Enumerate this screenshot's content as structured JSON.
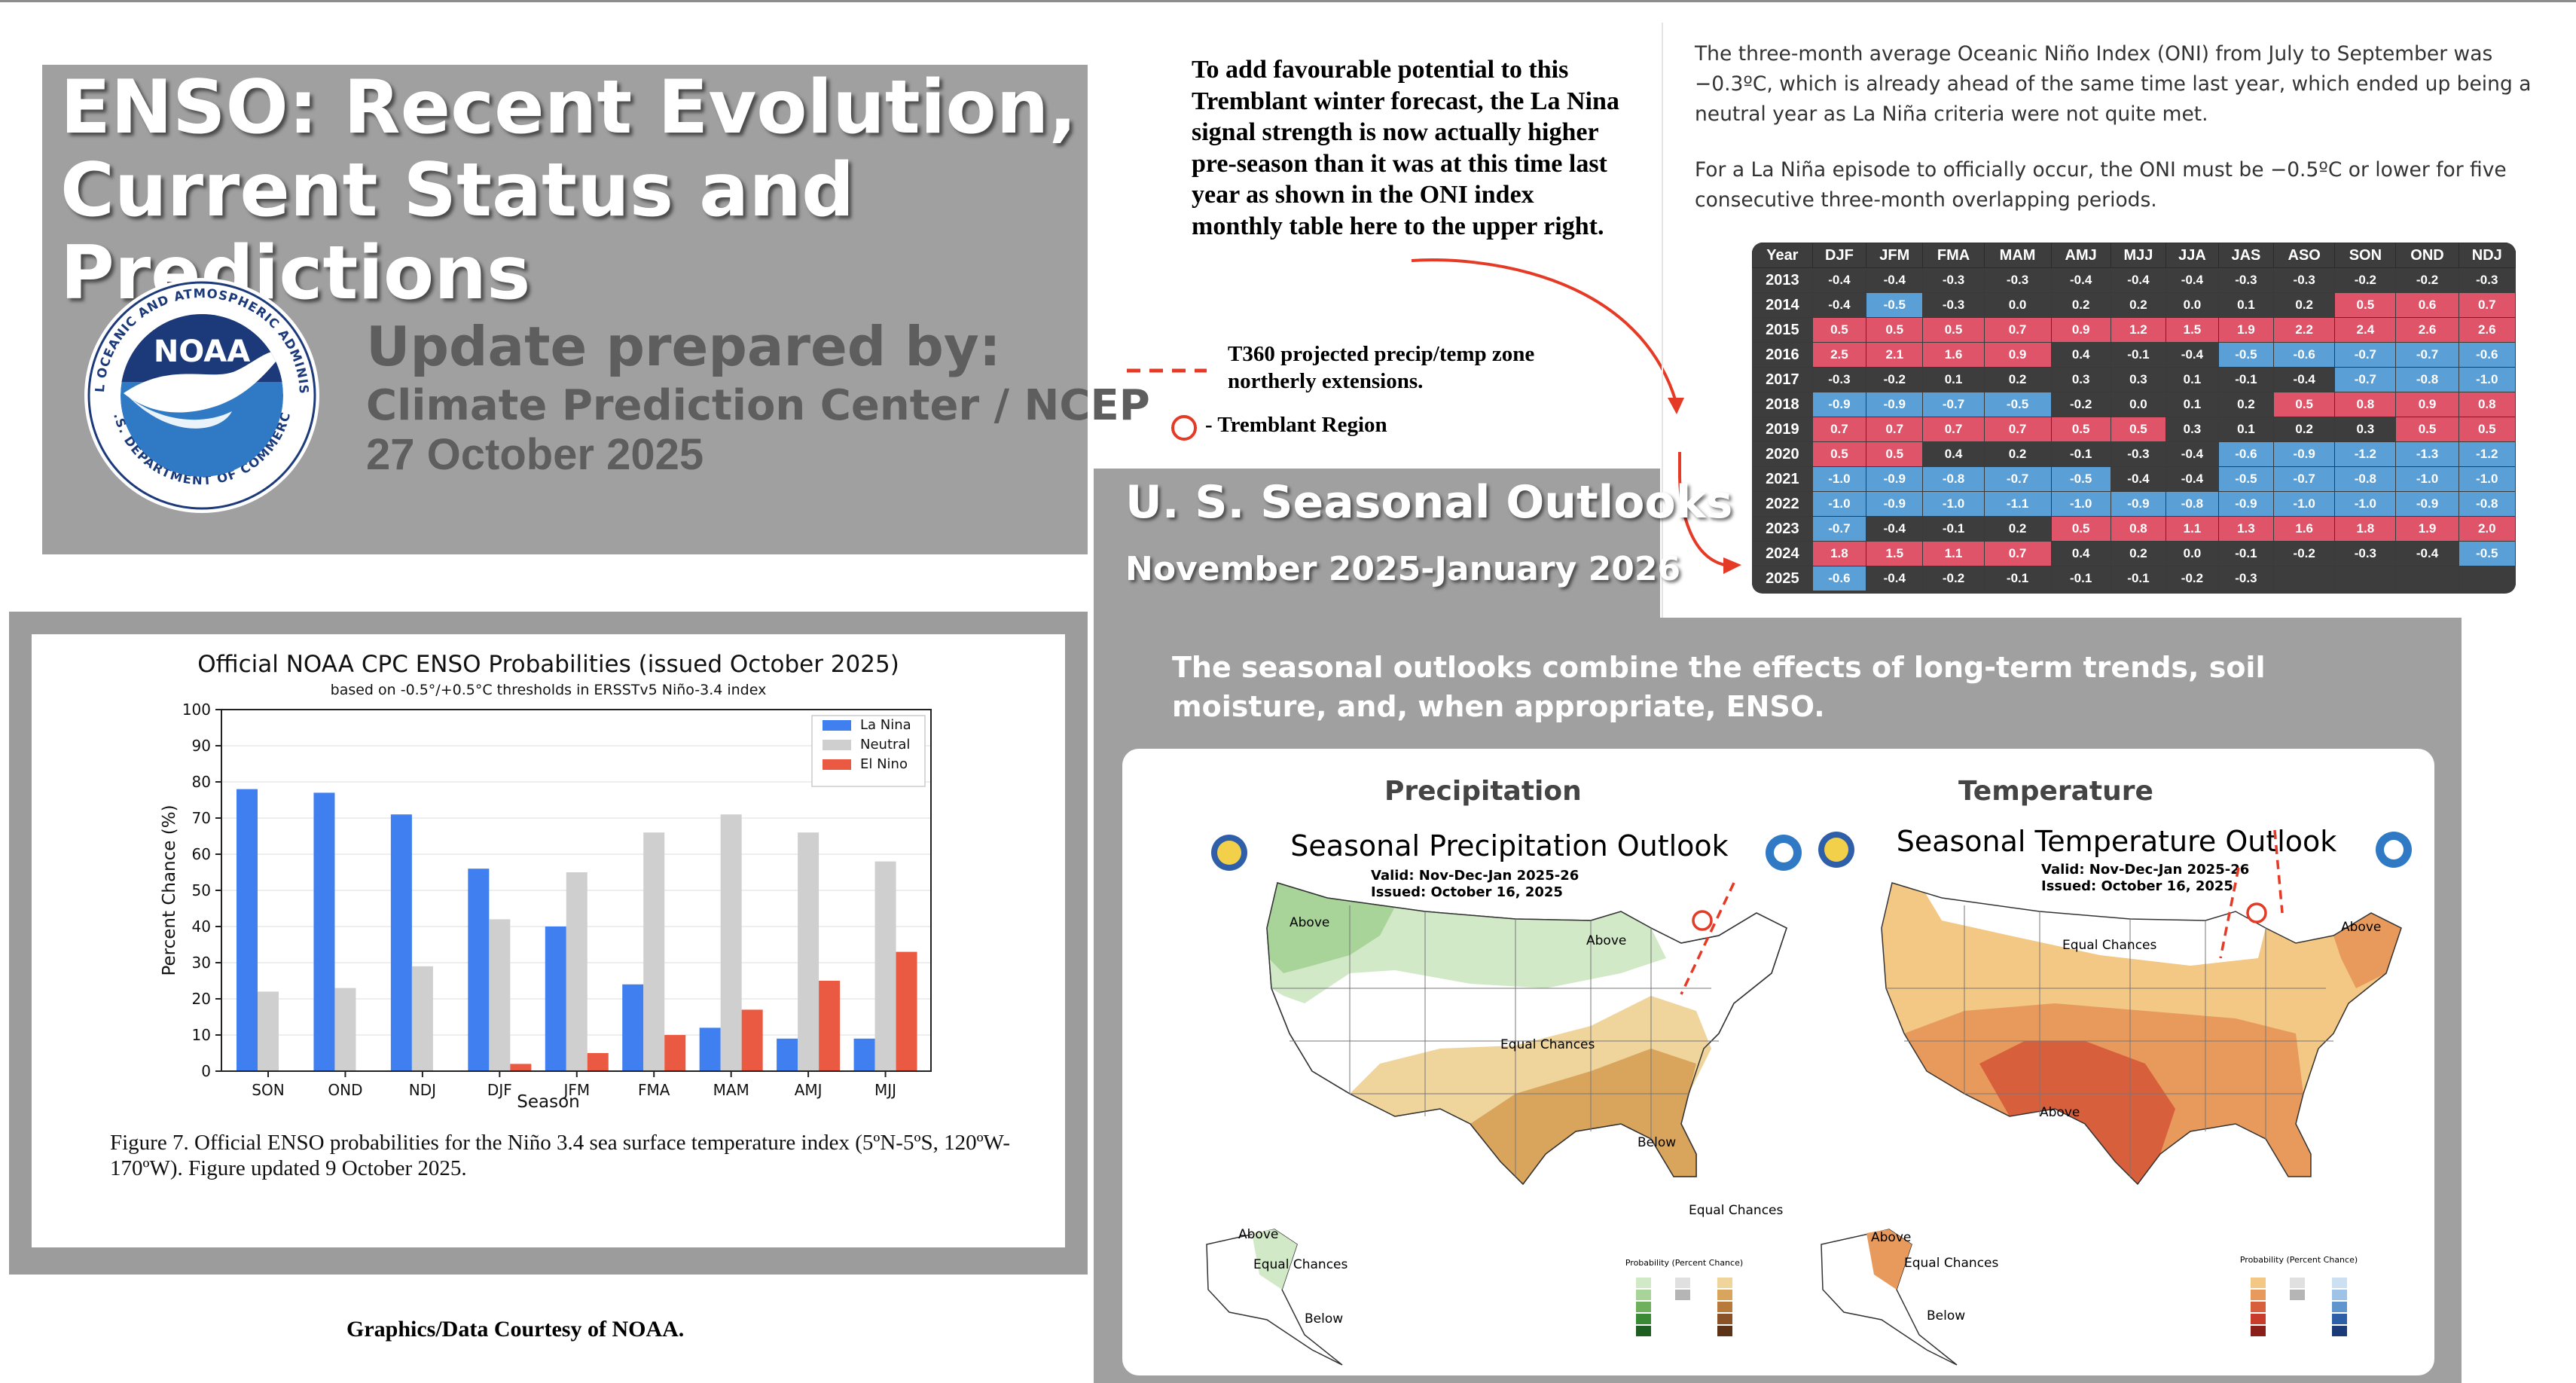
{
  "title": {
    "line1": "ENSO: Recent Evolution,",
    "line2": "Current Status and Predictions",
    "update_heading": "Update prepared by:",
    "update_org": "Climate Prediction Center / NCEP",
    "update_date": "27 October 2025",
    "logo": {
      "name": "noaa-logo",
      "center_text": "NOAA",
      "ring_text_top": "NATIONAL OCEANIC AND ATMOSPHERIC ADMINISTRATION",
      "ring_text_bottom": "U.S. DEPARTMENT OF COMMERCE",
      "colors": {
        "navy": "#1c3a7a",
        "blue": "#2f79c5",
        "white": "#ffffff"
      }
    }
  },
  "note": {
    "text": "To add favourable potential to this Tremblant winter forecast, the La Nina signal strength is now actually higher pre-season than it was at this time last year as shown in the ONI index monthly table here to the upper right.",
    "dashed_legend": "T360 projected precip/temp zone northerly extensions.",
    "circle_legend": "- Tremblant Region",
    "accent_color": "#e53a25"
  },
  "oni": {
    "paragraph1": "The three-month average Oceanic Niño Index (ONI) from July to September was −0.3ºC, which is already ahead of the same time last year, which ended up being a neutral year as La Niña criteria were not quite met.",
    "paragraph2": "For a La Niña episode to officially occur, the ONI must be −0.5ºC or lower for five consecutive three-month overlapping periods.",
    "colors": {
      "cold": "#5a9fd6",
      "warm": "#e0546a",
      "neutral": "#3d3d3d"
    },
    "headers": [
      "Year",
      "DJF",
      "JFM",
      "FMA",
      "MAM",
      "AMJ",
      "MJJ",
      "JJA",
      "JAS",
      "ASO",
      "SON",
      "OND",
      "NDJ"
    ],
    "rows": [
      {
        "year": "2013",
        "values": [
          "-0.4",
          "-0.4",
          "-0.3",
          "-0.3",
          "-0.4",
          "-0.4",
          "-0.4",
          "-0.3",
          "-0.3",
          "-0.2",
          "-0.2",
          "-0.3"
        ]
      },
      {
        "year": "2014",
        "values": [
          "-0.4",
          "-0.5",
          "-0.3",
          "0.0",
          "0.2",
          "0.2",
          "0.0",
          "0.1",
          "0.2",
          "0.5",
          "0.6",
          "0.7"
        ]
      },
      {
        "year": "2015",
        "values": [
          "0.5",
          "0.5",
          "0.5",
          "0.7",
          "0.9",
          "1.2",
          "1.5",
          "1.9",
          "2.2",
          "2.4",
          "2.6",
          "2.6"
        ]
      },
      {
        "year": "2016",
        "values": [
          "2.5",
          "2.1",
          "1.6",
          "0.9",
          "0.4",
          "-0.1",
          "-0.4",
          "-0.5",
          "-0.6",
          "-0.7",
          "-0.7",
          "-0.6"
        ]
      },
      {
        "year": "2017",
        "values": [
          "-0.3",
          "-0.2",
          "0.1",
          "0.2",
          "0.3",
          "0.3",
          "0.1",
          "-0.1",
          "-0.4",
          "-0.7",
          "-0.8",
          "-1.0"
        ]
      },
      {
        "year": "2018",
        "values": [
          "-0.9",
          "-0.9",
          "-0.7",
          "-0.5",
          "-0.2",
          "0.0",
          "0.1",
          "0.2",
          "0.5",
          "0.8",
          "0.9",
          "0.8"
        ]
      },
      {
        "year": "2019",
        "values": [
          "0.7",
          "0.7",
          "0.7",
          "0.7",
          "0.5",
          "0.5",
          "0.3",
          "0.1",
          "0.2",
          "0.3",
          "0.5",
          "0.5"
        ]
      },
      {
        "year": "2020",
        "values": [
          "0.5",
          "0.5",
          "0.4",
          "0.2",
          "-0.1",
          "-0.3",
          "-0.4",
          "-0.6",
          "-0.9",
          "-1.2",
          "-1.3",
          "-1.2"
        ]
      },
      {
        "year": "2021",
        "values": [
          "-1.0",
          "-0.9",
          "-0.8",
          "-0.7",
          "-0.5",
          "-0.4",
          "-0.4",
          "-0.5",
          "-0.7",
          "-0.8",
          "-1.0",
          "-1.0"
        ]
      },
      {
        "year": "2022",
        "values": [
          "-1.0",
          "-0.9",
          "-1.0",
          "-1.1",
          "-1.0",
          "-0.9",
          "-0.8",
          "-0.9",
          "-1.0",
          "-1.0",
          "-0.9",
          "-0.8"
        ]
      },
      {
        "year": "2023",
        "values": [
          "-0.7",
          "-0.4",
          "-0.1",
          "0.2",
          "0.5",
          "0.8",
          "1.1",
          "1.3",
          "1.6",
          "1.8",
          "1.9",
          "2.0"
        ]
      },
      {
        "year": "2024",
        "values": [
          "1.8",
          "1.5",
          "1.1",
          "0.7",
          "0.4",
          "0.2",
          "0.0",
          "-0.1",
          "-0.2",
          "-0.3",
          "-0.4",
          "-0.5"
        ]
      },
      {
        "year": "2025",
        "values": [
          "-0.6",
          "-0.4",
          "-0.2",
          "-0.1",
          "-0.1",
          "-0.1",
          "-0.2",
          "-0.3",
          "",
          "",
          "",
          ""
        ]
      }
    ]
  },
  "outlooks": {
    "title": "U. S. Seasonal Outlooks",
    "dates": "November 2025-January 2026",
    "description": "The seasonal outlooks combine the effects of long-term trends, soil moisture, and, when appropriate, ENSO.",
    "precip": {
      "header": "Precipitation",
      "map_title": "Seasonal Precipitation Outlook",
      "valid": "Valid:  Nov-Dec-Jan 2025-26",
      "issued": "Issued:  October 16, 2025",
      "labels": [
        "Above",
        "Above",
        "Equal Chances",
        "Below",
        "Equal Chances",
        "Above",
        "Equal Chances",
        "Below"
      ],
      "legend_title": "Probability (Percent Chance)",
      "colors": {
        "above": "#a8d49a",
        "below": "#d9a45c",
        "above_light": "#d2e9c7",
        "below_light": "#efd49c"
      }
    },
    "temp": {
      "header": "Temperature",
      "map_title": "Seasonal Temperature Outlook",
      "valid": "Valid:  Nov-Dec-Jan 2025-26",
      "issued": "Issued:  October 16, 2025",
      "labels": [
        "Equal Chances",
        "Above",
        "Above",
        "Above",
        "Equal Chances",
        "Below"
      ],
      "legend_title": "Probability (Percent Chance)",
      "colors": {
        "light": "#f3c784",
        "mid": "#e89a5c",
        "dark": "#d85f3c",
        "darker": "#c93c2c"
      }
    }
  },
  "chart": {
    "caption": "Figure 7. Official ENSO probabilities for the Niño 3.4 sea surface temperature index (5ºN-5ºS, 120ºW-170ºW). Figure updated 9 October 2025."
  },
  "chart_data": {
    "type": "bar",
    "title": "Official NOAA CPC ENSO Probabilities (issued October 2025)",
    "subtitle": "based on -0.5°/+0.5°C thresholds in ERSSTv5 Niño-3.4 index",
    "xlabel": "Season",
    "ylabel": "Percent Chance (%)",
    "ylim": [
      0,
      100
    ],
    "yticks": [
      0,
      10,
      20,
      30,
      40,
      50,
      60,
      70,
      80,
      90,
      100
    ],
    "categories": [
      "SON",
      "OND",
      "NDJ",
      "DJF",
      "JFM",
      "FMA",
      "MAM",
      "AMJ",
      "MJJ"
    ],
    "series": [
      {
        "name": "La Nina",
        "color": "#3f7ff0",
        "values": [
          78,
          77,
          71,
          56,
          40,
          24,
          12,
          9,
          9
        ]
      },
      {
        "name": "Neutral",
        "color": "#cfcfcf",
        "values": [
          22,
          23,
          29,
          42,
          55,
          66,
          71,
          66,
          58
        ]
      },
      {
        "name": "El Nino",
        "color": "#ea5a43",
        "values": [
          0,
          0,
          0,
          2,
          5,
          10,
          17,
          25,
          33
        ]
      }
    ],
    "legend_position": "top-right",
    "grid": true
  },
  "footer": {
    "courtesy": "Graphics/Data Courtesy of NOAA."
  }
}
